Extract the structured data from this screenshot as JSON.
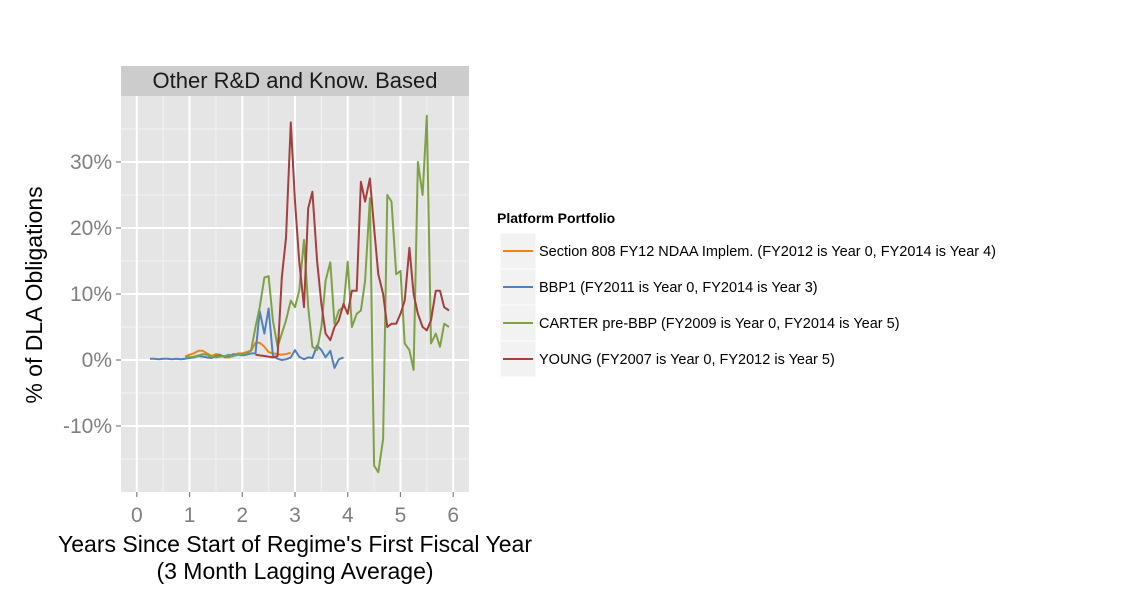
{
  "chart_data": {
    "type": "line",
    "panel_title": "Other R&D and Know. Based",
    "xlabel": "Years Since Start of Regime's First Fiscal Year",
    "xlabel_sub": "(3 Month Lagging Average)",
    "ylabel": "% of DLA Obligations",
    "xlim": [
      -0.3,
      6.3
    ],
    "ylim": [
      -20,
      40
    ],
    "x_ticks": [
      0,
      1,
      2,
      3,
      4,
      5,
      6
    ],
    "y_ticks": [
      -10,
      0,
      10,
      20,
      30
    ],
    "y_tick_labels": [
      "-10%",
      "0%",
      "10%",
      "20%",
      "30%"
    ],
    "grid": true,
    "legend_title": "Platform Portfolio",
    "legend_position": "right",
    "series": [
      {
        "name": "Section 808 FY12 NDAA Implem. (FY2012 is Year 0, FY2014 is Year 4)",
        "color": "#E8861A",
        "x": [
          0.92,
          1.0,
          1.08,
          1.17,
          1.25,
          1.33,
          1.42,
          1.5,
          1.58,
          1.67,
          1.75,
          1.83,
          1.92,
          2.0,
          2.08,
          2.17,
          2.25,
          2.33,
          2.42,
          2.5,
          2.58,
          2.67,
          2.75,
          2.83,
          2.92
        ],
        "y": [
          0.5,
          0.8,
          1.0,
          1.4,
          1.4,
          1.0,
          0.6,
          0.9,
          0.8,
          0.4,
          0.4,
          0.6,
          1.0,
          1.0,
          1.2,
          1.4,
          2.6,
          2.6,
          2.0,
          1.2,
          1.0,
          0.9,
          0.8,
          0.9,
          1.1
        ]
      },
      {
        "name": "BBP1 (FY2011 is Year 0, FY2014 is Year 3)",
        "color": "#4F81BD",
        "x": [
          0.25,
          0.33,
          0.42,
          0.5,
          0.58,
          0.67,
          0.75,
          0.83,
          0.92,
          1.0,
          1.08,
          1.17,
          1.25,
          1.33,
          1.42,
          1.5,
          1.58,
          1.67,
          1.75,
          1.83,
          1.92,
          2.0,
          2.08,
          2.17,
          2.25,
          2.33,
          2.42,
          2.5,
          2.58,
          2.67,
          2.75,
          2.83,
          2.92,
          3.0,
          3.08,
          3.17,
          3.25,
          3.33,
          3.42,
          3.5,
          3.58,
          3.67,
          3.75,
          3.83,
          3.92
        ],
        "y": [
          0.2,
          0.2,
          0.1,
          0.2,
          0.2,
          0.1,
          0.2,
          0.1,
          0.2,
          0.3,
          0.4,
          0.6,
          0.5,
          0.4,
          0.3,
          0.6,
          0.7,
          0.5,
          0.6,
          0.9,
          0.8,
          0.7,
          0.8,
          1.0,
          1.0,
          7.4,
          4.0,
          7.8,
          0.6,
          0.2,
          0.0,
          0.1,
          0.4,
          1.5,
          0.5,
          0.1,
          0.4,
          0.3,
          2.2,
          1.5,
          0.4,
          1.4,
          -1.2,
          0.1,
          0.4
        ]
      },
      {
        "name": "CARTER pre-BBP (FY2009 is Year 0, FY2014 is Year 5)",
        "color": "#7FA145",
        "x": [
          0.92,
          1.0,
          1.08,
          1.17,
          1.25,
          1.33,
          1.42,
          1.5,
          1.58,
          1.67,
          1.75,
          1.83,
          1.92,
          2.0,
          2.08,
          2.17,
          2.25,
          2.33,
          2.42,
          2.5,
          2.58,
          2.67,
          2.75,
          2.83,
          2.92,
          3.0,
          3.08,
          3.17,
          3.25,
          3.33,
          3.42,
          3.5,
          3.58,
          3.67,
          3.75,
          3.83,
          3.92,
          4.0,
          4.08,
          4.17,
          4.25,
          4.33,
          4.42,
          4.5,
          4.58,
          4.67,
          4.75,
          4.83,
          4.92,
          5.0,
          5.08,
          5.17,
          5.25,
          5.33,
          5.42,
          5.5,
          5.58,
          5.67,
          5.75,
          5.83,
          5.92
        ],
        "y": [
          0.6,
          0.4,
          0.5,
          0.7,
          0.9,
          0.8,
          0.5,
          0.4,
          0.5,
          0.6,
          0.8,
          0.6,
          0.8,
          0.9,
          1.0,
          1.5,
          5.0,
          8.0,
          12.5,
          12.7,
          6.0,
          2.0,
          4.0,
          6.0,
          9.0,
          8.0,
          10.5,
          18.2,
          8.0,
          2.0,
          1.5,
          5.0,
          12.0,
          14.8,
          5.5,
          7.5,
          8.0,
          14.9,
          5.0,
          7.0,
          7.5,
          12.0,
          24.5,
          -16.0,
          -17.0,
          -12.0,
          25.0,
          24.0,
          13.0,
          13.5,
          2.5,
          1.5,
          -1.5,
          30.0,
          25.0,
          37.0,
          2.5,
          4.0,
          2.0,
          5.5,
          5.0
        ]
      },
      {
        "name": "YOUNG (FY2007 is Year 0, FY2012 is Year 5)",
        "color": "#A53E3E",
        "x": [
          2.25,
          2.33,
          2.42,
          2.5,
          2.58,
          2.67,
          2.75,
          2.83,
          2.92,
          3.0,
          3.08,
          3.17,
          3.25,
          3.33,
          3.42,
          3.5,
          3.58,
          3.67,
          3.75,
          3.83,
          3.92,
          4.0,
          4.08,
          4.17,
          4.25,
          4.33,
          4.42,
          4.5,
          4.58,
          4.67,
          4.75,
          4.83,
          4.92,
          5.0,
          5.08,
          5.17,
          5.25,
          5.33,
          5.42,
          5.5,
          5.58,
          5.67,
          5.75,
          5.83,
          5.92
        ],
        "y": [
          0.8,
          0.7,
          0.6,
          0.5,
          0.4,
          0.6,
          12.5,
          18.5,
          36.0,
          24.0,
          15.0,
          8.0,
          23.0,
          25.5,
          15.0,
          8.5,
          4.0,
          3.0,
          5.0,
          6.0,
          8.5,
          7.0,
          10.5,
          10.5,
          27.0,
          24.0,
          27.5,
          20.0,
          13.0,
          10.0,
          5.0,
          5.5,
          5.5,
          7.0,
          9.0,
          17.0,
          10.0,
          7.0,
          5.0,
          4.5,
          6.0,
          10.5,
          10.5,
          8.0,
          7.5
        ]
      }
    ]
  }
}
